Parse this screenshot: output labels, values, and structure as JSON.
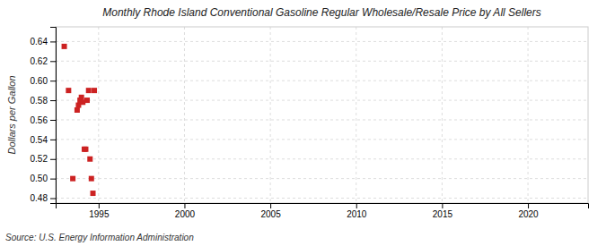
{
  "chart_data": {
    "type": "scatter",
    "title": "Monthly Rhode Island Conventional Gasoline Regular Wholesale/Resale Price by All Sellers",
    "ylabel": "Dollars per Gallon",
    "annotations": [
      "Source: U.S. Energy Information Administration"
    ],
    "x": [
      1993.0,
      1993.25,
      1993.5,
      1993.75,
      1993.83,
      1993.92,
      1994.0,
      1994.08,
      1994.17,
      1994.25,
      1994.33,
      1994.42,
      1994.5,
      1994.58,
      1994.67,
      1994.75
    ],
    "values": [
      0.635,
      0.59,
      0.5,
      0.57,
      0.575,
      0.58,
      0.583,
      0.578,
      0.53,
      0.53,
      0.58,
      0.59,
      0.52,
      0.5,
      0.485,
      0.59
    ],
    "color": "#cc2222",
    "marker": "square",
    "xlim": [
      1992.5,
      2023.5
    ],
    "ylim": [
      0.475,
      0.655
    ],
    "xticks": [
      1995,
      2000,
      2005,
      2010,
      2015,
      2020
    ],
    "yticks": [
      0.48,
      {
        "value": 0.5,
        "label": "0.50"
      },
      0.52,
      0.54,
      0.56,
      0.58,
      {
        "value": 0.6,
        "label": "0.60"
      },
      0.62,
      0.64
    ],
    "grid": true
  }
}
